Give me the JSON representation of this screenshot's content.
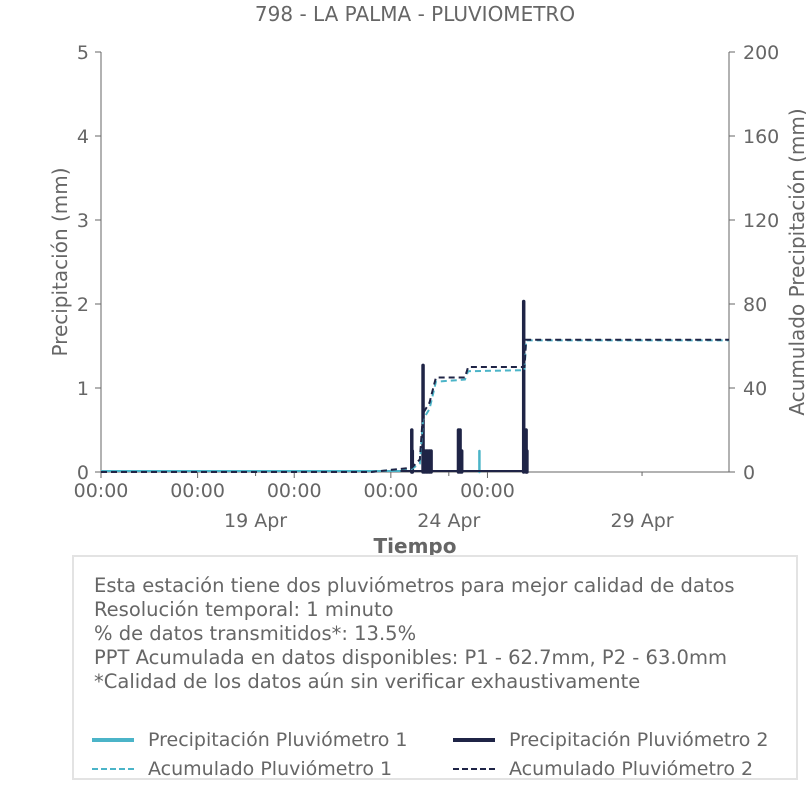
{
  "chart_data": {
    "type": "line",
    "title": "798 - LA PALMA - PLUVIOMETRO",
    "xlabel": "Tiempo",
    "ylabel": "Precipitación (mm)",
    "ylabel_right": "Acumulado Precipitación (mm)",
    "ylim": [
      0,
      5
    ],
    "ylim_right": [
      0,
      200
    ],
    "yticks": [
      "0",
      "1",
      "2",
      "3",
      "4",
      "5"
    ],
    "yticks_right": [
      "0",
      "40",
      "80",
      "120",
      "160",
      "200"
    ],
    "xlim": [
      "2026-04-15 00:00",
      "2026-05-01 06:00"
    ],
    "x_time_ticks": [
      "00:00",
      "00:00",
      "00:00",
      "00:00",
      "00:00"
    ],
    "x_date_ticks": [
      "19 Apr",
      "24 Apr",
      "29 Apr"
    ],
    "grid": false,
    "legend_position": "bottom",
    "colors": {
      "p1": "#4bb4c8",
      "p2": "#1f2446",
      "axis": "#666666",
      "box_border": "#e3e3e3"
    },
    "series": [
      {
        "name": "Precipitación Pluviómetro 1",
        "style": "solid",
        "points": [
          [
            "2026-04-22 12:00",
            0.0
          ],
          [
            "2026-04-23 01:00",
            0.25
          ],
          [
            "2026-04-23 08:00",
            0.25
          ],
          [
            "2026-04-23 10:00",
            0.25
          ],
          [
            "2026-04-23 12:00",
            0.25
          ],
          [
            "2026-04-24 19:00",
            0.25
          ],
          [
            "2026-04-26 00:00",
            0.25
          ]
        ]
      },
      {
        "name": "Precipitación Pluviómetro 2",
        "style": "solid",
        "points": [
          [
            "2026-04-22 12:00",
            0.0
          ],
          [
            "2026-04-23 01:00",
            0.5
          ],
          [
            "2026-04-23 01:20",
            0.25
          ],
          [
            "2026-04-23 08:00",
            1.27
          ],
          [
            "2026-04-23 09:00",
            0.25
          ],
          [
            "2026-04-23 10:00",
            0.25
          ],
          [
            "2026-04-23 11:00",
            0.25
          ],
          [
            "2026-04-23 12:00",
            0.25
          ],
          [
            "2026-04-23 13:00",
            0.25
          ],
          [
            "2026-04-24 06:00",
            0.5
          ],
          [
            "2026-04-24 07:00",
            0.5
          ],
          [
            "2026-04-24 08:00",
            0.25
          ],
          [
            "2026-04-25 22:30",
            2.03
          ],
          [
            "2026-04-26 00:00",
            0.5
          ],
          [
            "2026-04-26 00:30",
            0.25
          ]
        ]
      },
      {
        "name": "Acumulado Pluviómetro 1",
        "style": "dashed",
        "axis": "right",
        "points": [
          [
            "2026-04-15 00:00",
            0.0
          ],
          [
            "2026-04-22 00:00",
            0.0
          ],
          [
            "2026-04-22 12:00",
            1.0
          ],
          [
            "2026-04-23 01:00",
            1.5
          ],
          [
            "2026-04-23 06:00",
            4.0
          ],
          [
            "2026-04-23 08:00",
            25.0
          ],
          [
            "2026-04-23 12:00",
            30.0
          ],
          [
            "2026-04-23 16:00",
            43.0
          ],
          [
            "2026-04-24 10:00",
            44.0
          ],
          [
            "2026-04-24 12:00",
            48.0
          ],
          [
            "2026-04-25 23:00",
            48.5
          ],
          [
            "2026-04-26 00:00",
            62.7
          ],
          [
            "2026-05-01 06:00",
            62.7
          ]
        ]
      },
      {
        "name": "Acumulado Pluviómetro 2",
        "style": "dashed",
        "axis": "right",
        "points": [
          [
            "2026-04-15 00:00",
            0.0
          ],
          [
            "2026-04-22 00:00",
            0.0
          ],
          [
            "2026-04-22 12:00",
            1.0
          ],
          [
            "2026-04-23 01:00",
            2.0
          ],
          [
            "2026-04-23 06:00",
            6.0
          ],
          [
            "2026-04-23 08:00",
            28.0
          ],
          [
            "2026-04-23 12:00",
            33.0
          ],
          [
            "2026-04-23 16:00",
            45.0
          ],
          [
            "2026-04-24 10:00",
            45.0
          ],
          [
            "2026-04-24 12:00",
            50.0
          ],
          [
            "2026-04-25 23:00",
            50.0
          ],
          [
            "2026-04-26 00:00",
            63.0
          ],
          [
            "2026-05-01 06:00",
            63.0
          ]
        ]
      }
    ]
  },
  "info": {
    "lines": [
      "Esta estación tiene dos pluviómetros para mejor calidad de datos",
      "Resolución temporal: 1 minuto",
      "% de datos transmitidos*: 13.5%",
      "PPT Acumulada en datos disponibles: P1 - 62.7mm, P2 - 63.0mm",
      "*Calidad de los datos aún sin verificar exhaustivamente"
    ]
  },
  "legend": {
    "items": [
      {
        "label": "Precipitación Pluviómetro 1",
        "color": "#4bb4c8",
        "style": "solid"
      },
      {
        "label": "Precipitación Pluviómetro 2",
        "color": "#1f2446",
        "style": "solid"
      },
      {
        "label": "Acumulado Pluviómetro 1",
        "color": "#4bb4c8",
        "style": "dashed"
      },
      {
        "label": "Acumulado Pluviómetro 2",
        "color": "#1f2446",
        "style": "dashed"
      }
    ]
  }
}
